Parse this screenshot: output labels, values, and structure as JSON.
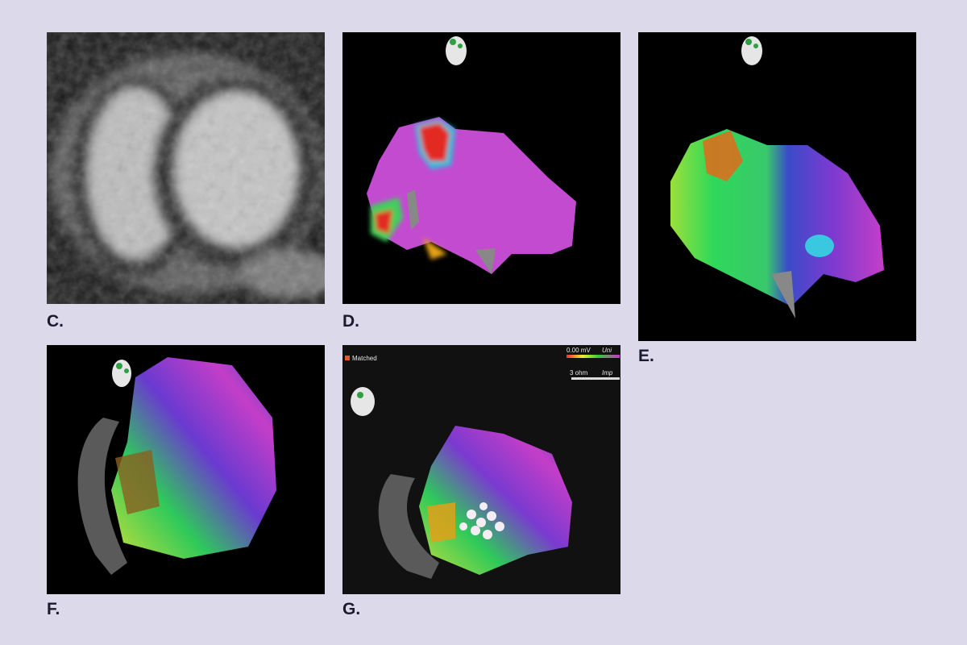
{
  "panels": [
    {
      "label": "C."
    },
    {
      "label": "D."
    },
    {
      "label": "E."
    },
    {
      "label": "F."
    },
    {
      "label": "G."
    }
  ],
  "overlay": {
    "voltage": "0.00 mV",
    "uni": "Uni",
    "impedance": "3 ohm",
    "imp": "Imp",
    "matched": "Matched"
  }
}
